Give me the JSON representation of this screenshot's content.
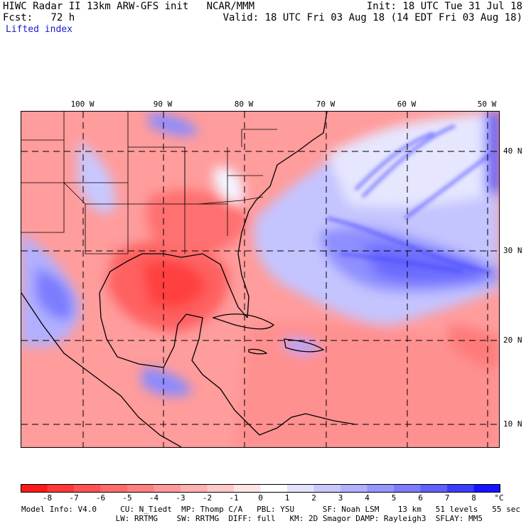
{
  "header": {
    "left_line1": "HIWC Radar II 13km ARW-GFS init   NCAR/MMM",
    "left_line2": "Fcst:   72 h",
    "right_line1": "Init: 18 UTC Tue 31 Jul 18",
    "right_line2": "Valid: 18 UTC Fri 03 Aug 18 (14 EDT Fri 03 Aug 18)",
    "field": "Lifted index"
  },
  "map": {
    "lon_labels": [
      "100 W",
      "90 W",
      "80 W",
      "70 W",
      "60 W",
      "50 W"
    ],
    "lat_labels": [
      "40 N",
      "30 N",
      "20 N",
      "10 N"
    ]
  },
  "colorbar": {
    "labels": [
      "-8",
      "-7",
      "-6",
      "-5",
      "-4",
      "-3",
      "-2",
      "-1",
      "0",
      "1",
      "2",
      "3",
      "4",
      "5",
      "6",
      "7",
      "8"
    ],
    "unit": "°C",
    "colors": [
      "#ff1a1a",
      "#ff3838",
      "#ff5252",
      "#ff6a6a",
      "#ff8080",
      "#ff9898",
      "#ffb0b0",
      "#ffc8c8",
      "#ffe4e4",
      "#ffffff",
      "#e2e2ff",
      "#c8c8ff",
      "#b0b0ff",
      "#9696ff",
      "#7c7cff",
      "#6060ff",
      "#3c3cff",
      "#1414ff"
    ]
  },
  "footer": {
    "line1": "Model Info: V4.0     CU: N_Tiedt  MP: Thomp C/A   PBL: YSU      SF: Noah LSM    13 km   51 levels   55 sec",
    "line2": "                    LW: RRTMG    SW: RRTMG  DIFF: full   KM: 2D Smagor DAMP: Rayleigh3  SFLAY: MM5"
  }
}
